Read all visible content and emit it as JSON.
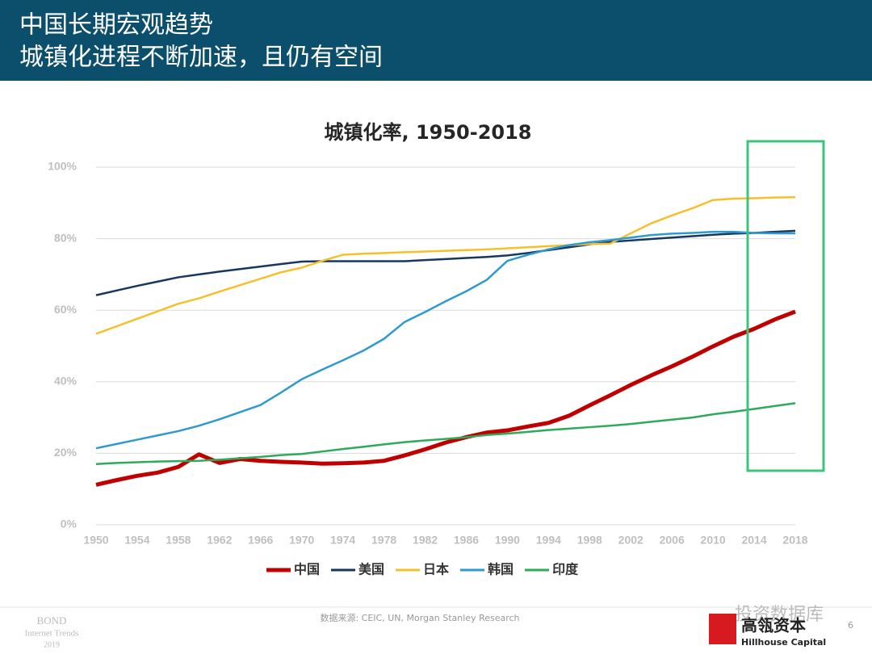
{
  "header": {
    "title_lines": [
      "中国长期宏观趋势",
      "城镇化进程不断加速，且仍有空间"
    ]
  },
  "chart_data": {
    "type": "line",
    "title": "城镇化率, 1950-2018",
    "x": [
      1950,
      1952,
      1954,
      1956,
      1958,
      1960,
      1962,
      1964,
      1966,
      1968,
      1970,
      1972,
      1974,
      1976,
      1978,
      1980,
      1982,
      1984,
      1986,
      1988,
      1990,
      1992,
      1994,
      1996,
      1998,
      2000,
      2002,
      2004,
      2006,
      2008,
      2010,
      2012,
      2014,
      2016,
      2018
    ],
    "series": [
      {
        "name": "中国",
        "color": "#c00000",
        "values": [
          11.2,
          12.5,
          13.7,
          14.6,
          16.2,
          19.7,
          17.3,
          18.4,
          17.9,
          17.6,
          17.4,
          17.1,
          17.2,
          17.4,
          17.9,
          19.4,
          21.1,
          23.0,
          24.5,
          25.8,
          26.4,
          27.5,
          28.5,
          30.5,
          33.4,
          36.2,
          39.1,
          41.8,
          44.3,
          47.0,
          49.9,
          52.6,
          54.8,
          57.4,
          59.6
        ]
      },
      {
        "name": "美国",
        "color": "#17375e",
        "values": [
          64.2,
          65.5,
          66.8,
          68.0,
          69.2,
          70.0,
          70.8,
          71.5,
          72.2,
          72.9,
          73.6,
          73.7,
          73.7,
          73.7,
          73.7,
          73.7,
          74.0,
          74.3,
          74.6,
          74.9,
          75.3,
          76.0,
          76.8,
          77.6,
          78.4,
          79.1,
          79.5,
          79.9,
          80.3,
          80.7,
          81.1,
          81.4,
          81.6,
          81.9,
          82.2
        ]
      },
      {
        "name": "日本",
        "color": "#f5c02c",
        "values": [
          53.4,
          55.5,
          57.6,
          59.7,
          61.8,
          63.3,
          65.2,
          67.0,
          68.8,
          70.6,
          71.9,
          73.8,
          75.5,
          75.8,
          76.0,
          76.2,
          76.4,
          76.6,
          76.8,
          77.0,
          77.3,
          77.6,
          77.9,
          78.2,
          78.5,
          78.6,
          81.5,
          84.3,
          86.5,
          88.5,
          90.8,
          91.2,
          91.3,
          91.5,
          91.6
        ]
      },
      {
        "name": "韩国",
        "color": "#2e9ad0",
        "values": [
          21.4,
          22.6,
          23.8,
          25.0,
          26.2,
          27.7,
          29.5,
          31.5,
          33.5,
          37.0,
          40.7,
          43.4,
          46.0,
          48.7,
          52.0,
          56.7,
          59.5,
          62.5,
          65.3,
          68.5,
          73.8,
          75.5,
          77.0,
          78.2,
          79.0,
          79.6,
          80.3,
          81.0,
          81.4,
          81.6,
          81.9,
          81.9,
          81.6,
          81.5,
          81.5
        ]
      },
      {
        "name": "印度",
        "color": "#2daa5a",
        "values": [
          17.0,
          17.3,
          17.5,
          17.7,
          17.8,
          17.9,
          18.2,
          18.6,
          19.0,
          19.5,
          19.8,
          20.5,
          21.2,
          21.8,
          22.5,
          23.1,
          23.6,
          24.0,
          24.5,
          25.1,
          25.5,
          26.0,
          26.5,
          26.9,
          27.3,
          27.7,
          28.2,
          28.8,
          29.4,
          30.0,
          30.9,
          31.6,
          32.4,
          33.2,
          34.0
        ]
      }
    ],
    "xlim": [
      1950,
      2018
    ],
    "xticks": [
      1950,
      1954,
      1958,
      1962,
      1966,
      1970,
      1974,
      1978,
      1982,
      1986,
      1990,
      1994,
      1998,
      2002,
      2006,
      2010,
      2014,
      2018
    ],
    "ylim": [
      0,
      100
    ],
    "yticks": [
      {
        "value": 0,
        "label": "0%"
      },
      {
        "value": 20,
        "label": "20%"
      },
      {
        "value": 40,
        "label": "40%"
      },
      {
        "value": 60,
        "label": "60%"
      },
      {
        "value": 80,
        "label": "80%"
      },
      {
        "value": 100,
        "label": "100%"
      }
    ],
    "grid": true,
    "legend": "bottom",
    "source": "数据来源: CEIC, UN, Morgan Stanley Research"
  },
  "footer": {
    "bond": [
      "BOND",
      "Internet Trends",
      "2019"
    ],
    "page": "6",
    "watermark": "投资数据库",
    "logo": "高瓴资本",
    "logo_en": "Hillhouse Capital"
  }
}
